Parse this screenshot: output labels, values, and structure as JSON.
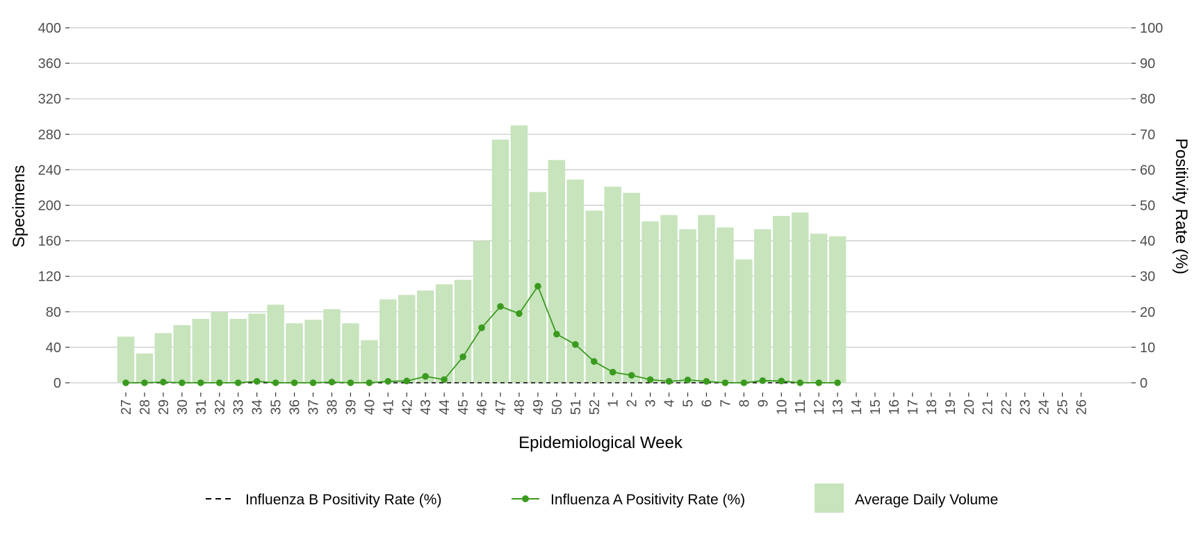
{
  "chart_data": {
    "type": "bar",
    "title": "",
    "xlabel": "Epidemiological Week",
    "ylabel": "Specimens",
    "ylabel_right": "Positivity Rate (%)",
    "ylim": [
      0,
      400
    ],
    "yticks": [
      0,
      40,
      80,
      120,
      160,
      200,
      240,
      280,
      320,
      360,
      400
    ],
    "ylim_right": [
      0,
      100
    ],
    "yticks_right": [
      0,
      10,
      20,
      30,
      40,
      50,
      60,
      70,
      80,
      90,
      100
    ],
    "grid": true,
    "legend_position": "bottom",
    "categories": [
      "27",
      "28",
      "29",
      "30",
      "31",
      "32",
      "33",
      "34",
      "35",
      "36",
      "37",
      "38",
      "39",
      "40",
      "41",
      "42",
      "43",
      "44",
      "45",
      "46",
      "47",
      "48",
      "49",
      "50",
      "51",
      "52",
      "1",
      "2",
      "3",
      "4",
      "5",
      "6",
      "7",
      "8",
      "9",
      "10",
      "11",
      "12",
      "13",
      "14",
      "15",
      "16",
      "17",
      "18",
      "19",
      "20",
      "21",
      "22",
      "23",
      "24",
      "25",
      "26"
    ],
    "series": [
      {
        "name": "Average Daily Volume",
        "kind": "bar",
        "axis": "left",
        "color": "#c7e4bd",
        "values": [
          52,
          33,
          56,
          65,
          72,
          80,
          72,
          78,
          88,
          67,
          71,
          83,
          67,
          48,
          94,
          99,
          104,
          111,
          116,
          160,
          274,
          290,
          215,
          251,
          229,
          194,
          221,
          214,
          182,
          189,
          173,
          189,
          175,
          139,
          173,
          188,
          192,
          168,
          165,
          null,
          null,
          null,
          null,
          null,
          null,
          null,
          null,
          null,
          null,
          null,
          null,
          null
        ]
      },
      {
        "name": "Influenza A Positivity Rate (%)",
        "kind": "line-markers",
        "axis": "right",
        "color": "#3a9a1e",
        "values": [
          0,
          0,
          0.2,
          0,
          0,
          0,
          0,
          0.4,
          0,
          0,
          0,
          0.2,
          0,
          0,
          0.4,
          0.5,
          1.8,
          0.9,
          7.3,
          15.5,
          21.5,
          19.5,
          27.2,
          13.7,
          10.8,
          6,
          3,
          2.1,
          0.9,
          0.4,
          0.8,
          0.4,
          0,
          0,
          0.6,
          0.5,
          0,
          0,
          0,
          null,
          null,
          null,
          null,
          null,
          null,
          null,
          null,
          null,
          null,
          null,
          null,
          null
        ]
      },
      {
        "name": "Influenza B Positivity Rate (%)",
        "kind": "dashed-line",
        "axis": "right",
        "color": "#000000",
        "values": [
          0,
          0,
          0,
          0,
          0,
          0,
          0,
          0,
          0,
          0,
          0,
          0,
          0,
          0,
          0,
          0,
          0,
          0,
          0,
          0,
          0,
          0,
          0,
          0,
          0,
          0,
          0,
          0,
          0,
          0,
          0,
          0,
          0,
          0,
          0,
          0,
          0,
          0,
          0,
          null,
          null,
          null,
          null,
          null,
          null,
          null,
          null,
          null,
          null,
          null,
          null,
          null
        ]
      }
    ],
    "legend": [
      {
        "label": "Influenza B Positivity Rate (%)",
        "symbol": "dashed-line",
        "color": "#000000"
      },
      {
        "label": "Influenza A Positivity Rate (%)",
        "symbol": "line-marker",
        "color": "#3a9a1e"
      },
      {
        "label": "Average Daily Volume",
        "symbol": "box",
        "color": "#c7e4bd"
      }
    ]
  }
}
